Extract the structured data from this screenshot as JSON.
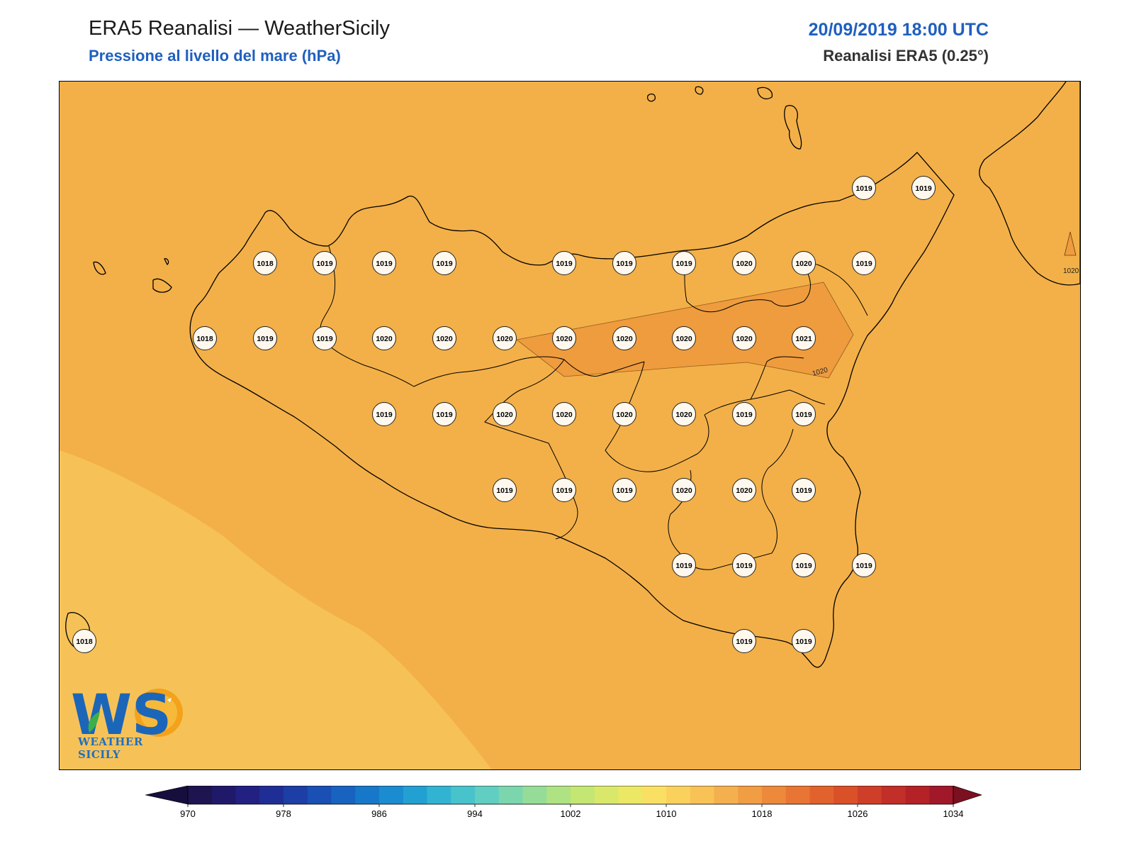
{
  "header": {
    "title": "ERA5 Reanalisi — WeatherSicily",
    "subtitle": "Pressione al livello del mare (hPa)",
    "datetime": "20/09/2019 18:00 UTC",
    "source": "Reanalisi ERA5 (0.25°)"
  },
  "map": {
    "fill_colors": {
      "band_1016_1018": "#f6c258",
      "band_1018_1020": "#f3b048",
      "band_1020_1022": "#ef9c3e",
      "coastline": "#000000",
      "station_circle": "#fff8ee"
    },
    "contour_labels": [
      "1020",
      "1020"
    ],
    "station_values": [
      {
        "id": "r1c1",
        "value": "1018"
      },
      {
        "id": "r1c2",
        "value": "1019"
      },
      {
        "id": "r1c3",
        "value": "1019"
      },
      {
        "id": "r1c4",
        "value": "1019"
      },
      {
        "id": "r1c6",
        "value": "1019"
      },
      {
        "id": "r1c7",
        "value": "1019"
      },
      {
        "id": "r1c8",
        "value": "1019"
      },
      {
        "id": "r1c9",
        "value": "1020"
      },
      {
        "id": "r1c10",
        "value": "1020"
      },
      {
        "id": "r1c11",
        "value": "1019"
      },
      {
        "id": "r0c11",
        "value": "1019"
      },
      {
        "id": "r0c12",
        "value": "1019"
      },
      {
        "id": "r2c0",
        "value": "1018"
      },
      {
        "id": "r2c1",
        "value": "1019"
      },
      {
        "id": "r2c2",
        "value": "1019"
      },
      {
        "id": "r2c3",
        "value": "1020"
      },
      {
        "id": "r2c4",
        "value": "1020"
      },
      {
        "id": "r2c5",
        "value": "1020"
      },
      {
        "id": "r2c6",
        "value": "1020"
      },
      {
        "id": "r2c7",
        "value": "1020"
      },
      {
        "id": "r2c8",
        "value": "1020"
      },
      {
        "id": "r2c9",
        "value": "1020"
      },
      {
        "id": "r2c10",
        "value": "1021"
      },
      {
        "id": "r3c3",
        "value": "1019"
      },
      {
        "id": "r3c4",
        "value": "1019"
      },
      {
        "id": "r3c5",
        "value": "1020"
      },
      {
        "id": "r3c6",
        "value": "1020"
      },
      {
        "id": "r3c7",
        "value": "1020"
      },
      {
        "id": "r3c8",
        "value": "1020"
      },
      {
        "id": "r3c9",
        "value": "1019"
      },
      {
        "id": "r3c10",
        "value": "1019"
      },
      {
        "id": "r4c5",
        "value": "1019"
      },
      {
        "id": "r4c6",
        "value": "1019"
      },
      {
        "id": "r4c7",
        "value": "1019"
      },
      {
        "id": "r4c8",
        "value": "1020"
      },
      {
        "id": "r4c9",
        "value": "1020"
      },
      {
        "id": "r4c10",
        "value": "1019"
      },
      {
        "id": "r5c8",
        "value": "1019"
      },
      {
        "id": "r5c9",
        "value": "1019"
      },
      {
        "id": "r5c10",
        "value": "1019"
      },
      {
        "id": "r5c11",
        "value": "1019"
      },
      {
        "id": "r6c9",
        "value": "1019"
      },
      {
        "id": "r6c10",
        "value": "1019"
      },
      {
        "id": "pantelleria",
        "value": "1018"
      }
    ]
  },
  "colorbar": {
    "tick_labels": [
      "970",
      "978",
      "986",
      "994",
      "1002",
      "1010",
      "1018",
      "1026",
      "1034"
    ],
    "min": 970,
    "max": 1034,
    "step": 2,
    "colors": [
      "#1e1450",
      "#20196a",
      "#222080",
      "#1f2e95",
      "#1c3ea5",
      "#1a4fb3",
      "#1863c0",
      "#1778c9",
      "#1a8ccf",
      "#22a0d2",
      "#33b3d2",
      "#48c3cc",
      "#60cec0",
      "#7bd6ad",
      "#95dc98",
      "#aee283",
      "#c4e672",
      "#d9e86a",
      "#ece765",
      "#f9e063",
      "#fbd15e",
      "#f8c257",
      "#f4b04f",
      "#f09d44",
      "#ec893b",
      "#e87533",
      "#e2622d",
      "#da5029",
      "#cf3e28",
      "#c22e28",
      "#b42228",
      "#a0182a"
    ],
    "under_color": "#160e3c",
    "over_color": "#7a1020"
  },
  "logo": {
    "letters": "WS",
    "text": "WEATHER SICILY"
  }
}
